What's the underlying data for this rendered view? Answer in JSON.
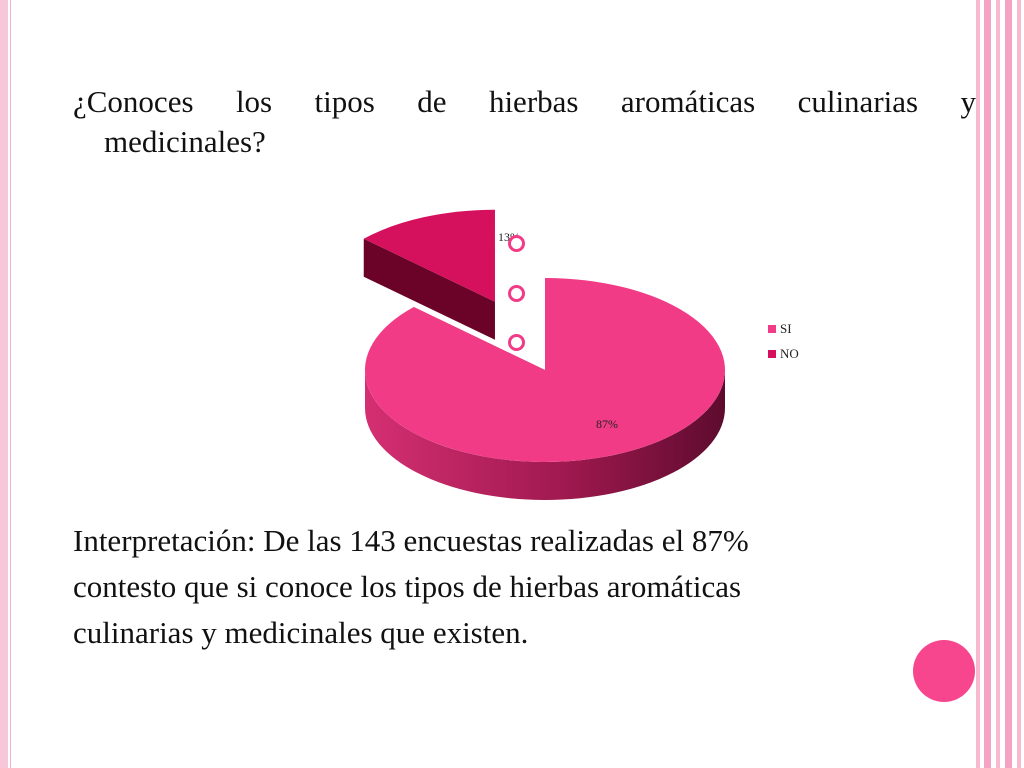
{
  "slide": {
    "question_line1": "¿Conoces los tipos de hierbas aromáticas culinarias y",
    "question_line2": "medicinales?",
    "interpretation_lines": [
      "Interpretación: De las 143 encuestas realizadas el 87%",
      "contesto que si conoce los tipos de hierbas aromáticas",
      "culinarias y medicinales que existen."
    ]
  },
  "colors": {
    "si_top": "#f23b86",
    "si_side": "#a0194f",
    "no_top": "#d5105c",
    "no_side": "#6a0327",
    "accent": "#f7468e",
    "stripe": "#f4a6c4"
  },
  "chart_data": {
    "type": "pie",
    "style": "3d-exploded",
    "slices": [
      {
        "name": "SI",
        "value": 87,
        "label": "87%"
      },
      {
        "name": "NO",
        "value": 13,
        "label": "13%"
      }
    ],
    "legend": {
      "placement": "right",
      "entries": [
        "SI",
        "NO"
      ]
    }
  }
}
